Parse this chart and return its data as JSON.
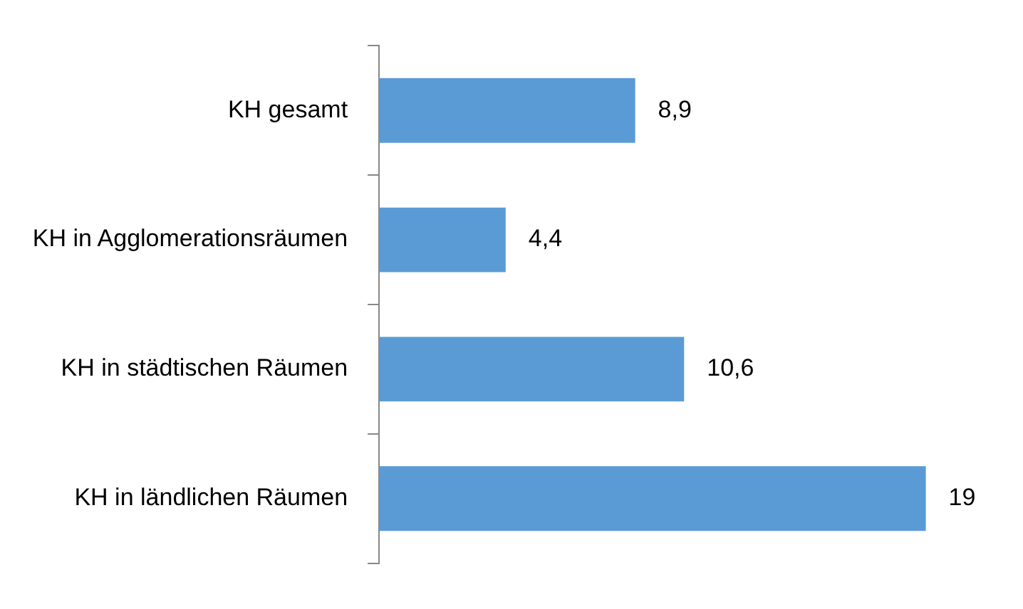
{
  "chart_data": {
    "type": "bar",
    "orientation": "horizontal",
    "categories": [
      "KH gesamt",
      "KH in Agglomerationsräumen",
      "KH in städtischen Räumen",
      "KH in ländlichen Räumen"
    ],
    "values": [
      8.9,
      4.4,
      10.6,
      19
    ],
    "color": "#5b9bd5",
    "value_labels": [
      "8,9",
      "4,4",
      "10,6",
      "19"
    ],
    "grid": false,
    "legend": false
  }
}
